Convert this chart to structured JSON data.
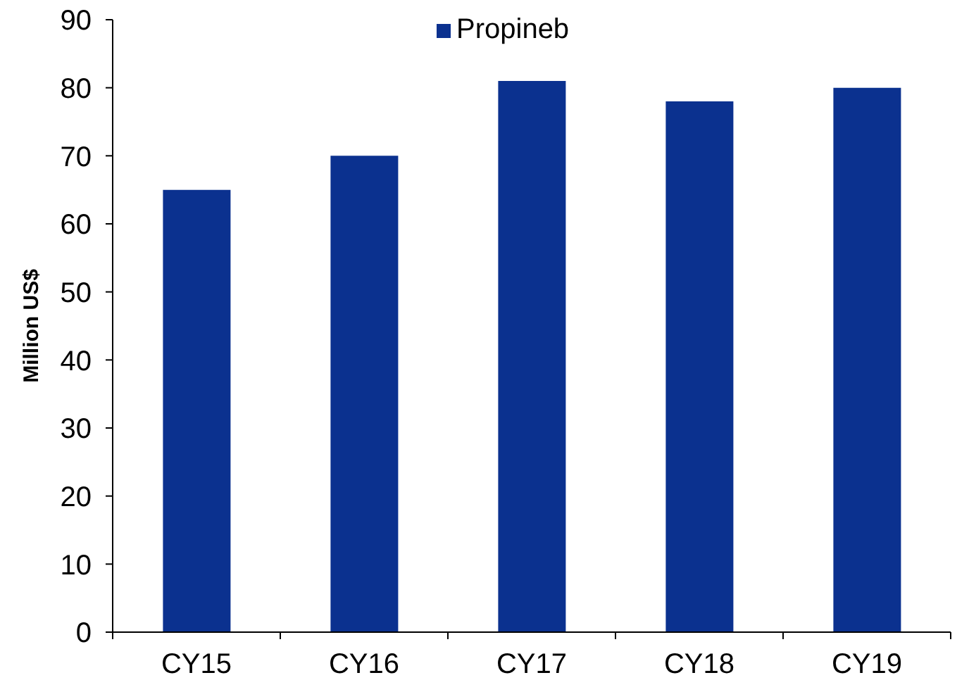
{
  "chart_data": {
    "type": "bar",
    "categories": [
      "CY15",
      "CY16",
      "CY17",
      "CY18",
      "CY19"
    ],
    "series": [
      {
        "name": "Propineb",
        "color": "#0b318f",
        "values": [
          65,
          70,
          81,
          78,
          80
        ]
      }
    ],
    "ylabel": "Million US$",
    "ylim": [
      0,
      90
    ],
    "yticks": [
      0,
      10,
      20,
      30,
      40,
      50,
      60,
      70,
      80,
      90
    ],
    "legend": "top"
  }
}
